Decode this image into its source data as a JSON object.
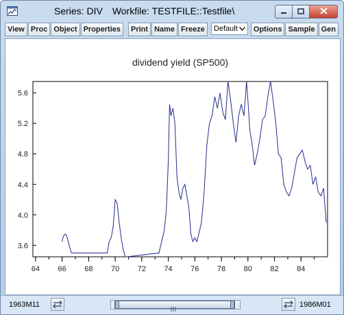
{
  "window": {
    "title_series": "Series: DIV",
    "title_workfile": "Workfile: TESTFILE::Testfile\\"
  },
  "toolbar": {
    "view": "View",
    "proc": "Proc",
    "object": "Object",
    "properties": "Properties",
    "print": "Print",
    "name": "Name",
    "freeze": "Freeze",
    "dropdown_value": "Default",
    "options": "Options",
    "sample": "Sample",
    "gen": "Gen"
  },
  "status": {
    "start": "1963M11",
    "end": "1986M01"
  },
  "colors": {
    "series_line": "#1f2a8a",
    "accent": "#c9dcef"
  },
  "icons": {
    "app": "graph-window-icon",
    "minimize": "minimize-icon",
    "maximize": "maximize-icon",
    "close": "close-icon",
    "dropdown": "chevron-down-icon",
    "scroll_left": "double-arrow-icon",
    "scroll_right": "double-arrow-icon"
  },
  "chart_data": {
    "type": "line",
    "title": "dividend yield (SP500)",
    "xlabel": "",
    "ylabel": "",
    "xlim": [
      1963.8,
      1986.0
    ],
    "ylim": [
      3.45,
      5.75
    ],
    "grid": false,
    "x_ticks": [
      1964,
      1966,
      1968,
      1970,
      1972,
      1974,
      1976,
      1978,
      1980,
      1982,
      1984
    ],
    "x_tick_labels": [
      "64",
      "66",
      "68",
      "70",
      "72",
      "74",
      "76",
      "78",
      "80",
      "82",
      "84"
    ],
    "y_ticks": [
      3.6,
      4.0,
      4.4,
      4.8,
      5.2,
      5.6
    ],
    "y_tick_labels": [
      "3.6",
      "4.0",
      "4.4",
      "4.8",
      "5.2",
      "5.6"
    ],
    "series": [
      {
        "x": [
          1966.0,
          1966.1,
          1966.25,
          1966.4,
          1966.5,
          1966.7,
          1969.4,
          1969.55,
          1969.7,
          1969.85,
          1970.0,
          1970.15,
          1970.3,
          1970.45,
          1970.6,
          1970.75,
          1970.9,
          1973.3,
          1973.5,
          1973.7,
          1973.85,
          1974.0,
          1974.1,
          1974.2,
          1974.35,
          1974.5,
          1974.65,
          1974.8,
          1974.95,
          1975.1,
          1975.25,
          1975.4,
          1975.55,
          1975.7,
          1975.85,
          1976.0,
          1976.15,
          1976.3,
          1976.5,
          1976.7,
          1976.9,
          1977.1,
          1977.3,
          1977.5,
          1977.7,
          1977.9,
          1978.1,
          1978.3,
          1978.5,
          1978.7,
          1978.9,
          1979.1,
          1979.3,
          1979.5,
          1979.7,
          1979.9,
          1980.0,
          1980.15,
          1980.3,
          1980.5,
          1980.7,
          1980.9,
          1981.1,
          1981.3,
          1981.5,
          1981.7,
          1981.9,
          1982.1,
          1982.3,
          1982.5,
          1982.7,
          1982.9,
          1983.1,
          1983.3,
          1983.5,
          1983.7,
          1983.9,
          1984.1,
          1984.3,
          1984.5,
          1984.7,
          1984.9,
          1985.1,
          1985.3,
          1985.5,
          1985.7,
          1985.9
        ],
        "y": [
          3.65,
          3.72,
          3.75,
          3.7,
          3.62,
          3.5,
          3.5,
          3.65,
          3.7,
          3.85,
          4.2,
          4.15,
          3.9,
          3.7,
          3.55,
          3.45,
          3.45,
          3.5,
          3.65,
          3.8,
          4.05,
          4.7,
          5.45,
          5.3,
          5.4,
          5.2,
          4.5,
          4.3,
          4.2,
          4.35,
          4.4,
          4.25,
          4.1,
          3.75,
          3.65,
          3.7,
          3.65,
          3.75,
          3.9,
          4.3,
          4.9,
          5.2,
          5.3,
          5.55,
          5.4,
          5.6,
          5.35,
          5.25,
          5.75,
          5.5,
          5.2,
          4.95,
          5.3,
          5.45,
          5.3,
          5.75,
          5.5,
          5.1,
          4.95,
          4.65,
          4.8,
          5.0,
          5.25,
          5.3,
          5.55,
          5.75,
          5.5,
          5.2,
          4.8,
          4.75,
          4.4,
          4.3,
          4.25,
          4.35,
          4.55,
          4.75,
          4.8,
          4.85,
          4.7,
          4.6,
          4.65,
          4.4,
          4.5,
          4.3,
          4.25,
          4.35,
          3.9
        ]
      }
    ]
  }
}
